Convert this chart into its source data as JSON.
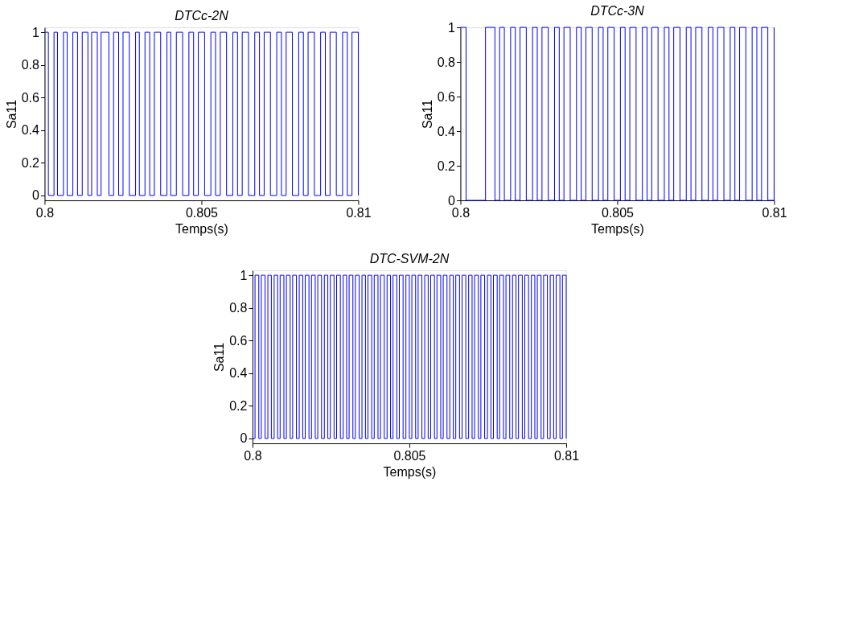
{
  "chart_data": [
    {
      "type": "step",
      "title": "DTCc-2N",
      "xlabel": "Temps(s)",
      "ylabel": "Sa11",
      "xlim": [
        0.8,
        0.81
      ],
      "ylim": [
        -0.03,
        1.03
      ],
      "xticks": [
        0.8,
        0.805,
        0.81
      ],
      "yticks": [
        0,
        0.2,
        0.4,
        0.6,
        0.8,
        1
      ],
      "grid": false,
      "x": [
        0.8,
        0.80012,
        0.8003,
        0.80041,
        0.8006,
        0.80072,
        0.8009,
        0.80105,
        0.8012,
        0.80138,
        0.8015,
        0.80168,
        0.8018,
        0.80205,
        0.8022,
        0.80236,
        0.8025,
        0.8027,
        0.8029,
        0.80302,
        0.8032,
        0.80335,
        0.8035,
        0.8037,
        0.8039,
        0.80402,
        0.8042,
        0.8044,
        0.8046,
        0.80475,
        0.8049,
        0.8051,
        0.8053,
        0.80545,
        0.8056,
        0.8058,
        0.806,
        0.80615,
        0.8063,
        0.8065,
        0.8067,
        0.80685,
        0.807,
        0.8072,
        0.8074,
        0.80755,
        0.8077,
        0.8079,
        0.8081,
        0.80825,
        0.8084,
        0.8086,
        0.8088,
        0.80895,
        0.8091,
        0.8093,
        0.8095,
        0.80965,
        0.8098,
        0.81
      ],
      "series": [
        {
          "color": "#0000ff",
          "values": [
            1,
            0,
            1,
            0,
            1,
            0,
            1,
            0,
            1,
            0,
            1,
            0,
            1,
            0,
            1,
            0,
            1,
            0,
            1,
            0,
            1,
            0,
            1,
            0,
            1,
            0,
            1,
            0,
            1,
            0,
            1,
            0,
            1,
            0,
            1,
            0,
            1,
            0,
            1,
            0,
            1,
            0,
            1,
            0,
            1,
            0,
            1,
            0,
            1,
            0,
            1,
            0,
            1,
            0,
            1,
            0,
            1,
            0,
            1,
            0
          ]
        }
      ]
    },
    {
      "type": "step",
      "title": "DTCc-3N",
      "xlabel": "Temps(s)",
      "ylabel": "Sa11",
      "xlim": [
        0.8,
        0.81
      ],
      "ylim": [
        0,
        1
      ],
      "xticks": [
        0.8,
        0.805,
        0.81
      ],
      "yticks": [
        0,
        0.2,
        0.4,
        0.6,
        0.8,
        1
      ],
      "grid": false,
      "x": [
        0.8,
        0.80018,
        0.8008,
        0.8011,
        0.80125,
        0.8014,
        0.8016,
        0.80175,
        0.8019,
        0.8021,
        0.8023,
        0.80245,
        0.8026,
        0.8028,
        0.803,
        0.80315,
        0.8033,
        0.8035,
        0.8037,
        0.80385,
        0.804,
        0.8042,
        0.8044,
        0.80455,
        0.8047,
        0.8049,
        0.8051,
        0.80525,
        0.8054,
        0.8056,
        0.8058,
        0.80595,
        0.8061,
        0.8063,
        0.8065,
        0.80665,
        0.8068,
        0.807,
        0.8072,
        0.80735,
        0.8075,
        0.8077,
        0.8079,
        0.80805,
        0.8082,
        0.8084,
        0.8086,
        0.80875,
        0.8089,
        0.8091,
        0.8093,
        0.80945,
        0.8096,
        0.8098,
        0.81
      ],
      "series": [
        {
          "color": "#0000ff",
          "values": [
            1,
            0,
            1,
            0,
            1,
            0,
            1,
            0,
            1,
            0,
            1,
            0,
            1,
            0,
            1,
            0,
            1,
            0,
            1,
            0,
            1,
            0,
            1,
            0,
            1,
            0,
            1,
            0,
            1,
            0,
            1,
            0,
            1,
            0,
            1,
            0,
            1,
            0,
            1,
            0,
            1,
            0,
            1,
            0,
            1,
            0,
            1,
            0,
            1,
            0,
            1,
            0,
            1,
            0,
            1
          ]
        }
      ]
    },
    {
      "type": "step",
      "title": "DTC-SVM-2N",
      "xlabel": "Temps(s)",
      "ylabel": "Sa11",
      "xlim": [
        0.8,
        0.81
      ],
      "ylim": [
        -0.03,
        1.03
      ],
      "xticks": [
        0.8,
        0.805,
        0.81
      ],
      "yticks": [
        0,
        0.2,
        0.4,
        0.6,
        0.8,
        1
      ],
      "grid": false,
      "x": [
        0.8,
        0.80008,
        0.8002,
        0.80028,
        0.8004,
        0.80049,
        0.8006,
        0.80069,
        0.8008,
        0.80088,
        0.801,
        0.80108,
        0.8012,
        0.80128,
        0.8014,
        0.80149,
        0.8016,
        0.80168,
        0.8018,
        0.80188,
        0.802,
        0.80208,
        0.8022,
        0.80229,
        0.8024,
        0.80248,
        0.8026,
        0.80268,
        0.8028,
        0.80289,
        0.803,
        0.80308,
        0.8032,
        0.80328,
        0.8034,
        0.80349,
        0.8036,
        0.80368,
        0.8038,
        0.80388,
        0.804,
        0.80408,
        0.8042,
        0.80429,
        0.8044,
        0.80448,
        0.8046,
        0.80468,
        0.8048,
        0.80489,
        0.805,
        0.80508,
        0.8052,
        0.80528,
        0.8054,
        0.80549,
        0.8056,
        0.80568,
        0.8058,
        0.80588,
        0.806,
        0.80608,
        0.8062,
        0.80629,
        0.8064,
        0.80648,
        0.8066,
        0.80668,
        0.8068,
        0.80689,
        0.807,
        0.80708,
        0.8072,
        0.80728,
        0.8074,
        0.80749,
        0.8076,
        0.80768,
        0.8078,
        0.80788,
        0.808,
        0.80808,
        0.8082,
        0.80829,
        0.8084,
        0.80848,
        0.8086,
        0.80868,
        0.8088,
        0.80889,
        0.809,
        0.80908,
        0.8092,
        0.80928,
        0.8094,
        0.80949,
        0.8096,
        0.80968,
        0.8098,
        0.80988,
        0.81
      ],
      "series": [
        {
          "color": "#0000ff",
          "values": [
            0,
            1,
            0,
            1,
            0,
            1,
            0,
            1,
            0,
            1,
            0,
            1,
            0,
            1,
            0,
            1,
            0,
            1,
            0,
            1,
            0,
            1,
            0,
            1,
            0,
            1,
            0,
            1,
            0,
            1,
            0,
            1,
            0,
            1,
            0,
            1,
            0,
            1,
            0,
            1,
            0,
            1,
            0,
            1,
            0,
            1,
            0,
            1,
            0,
            1,
            0,
            1,
            0,
            1,
            0,
            1,
            0,
            1,
            0,
            1,
            0,
            1,
            0,
            1,
            0,
            1,
            0,
            1,
            0,
            1,
            0,
            1,
            0,
            1,
            0,
            1,
            0,
            1,
            0,
            1,
            0,
            1,
            0,
            1,
            0,
            1,
            0,
            1,
            0,
            1,
            0,
            1,
            0,
            1,
            0,
            1,
            0,
            1,
            0,
            1,
            0
          ]
        }
      ]
    }
  ]
}
